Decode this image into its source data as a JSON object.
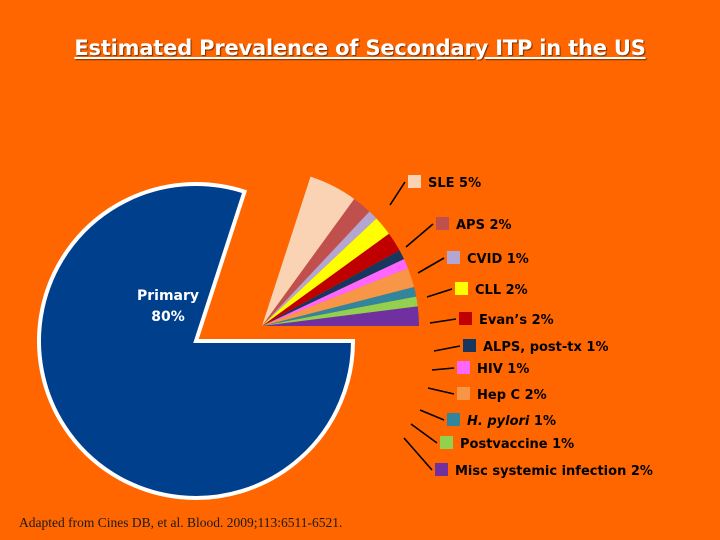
{
  "title": "Estimated Prevalence of Secondary ITP in the US",
  "citation": "Adapted from Cines DB, et al. Blood. 2009;113:6511-6521.",
  "chart_data": {
    "type": "pie",
    "title": "Estimated Prevalence of Secondary ITP in the US",
    "slices": [
      {
        "label": "Primary",
        "value": 80,
        "value_text": "80%",
        "color": "#003F8C"
      },
      {
        "label": "SLE 5%",
        "value": 5,
        "color": "#FAD2B4"
      },
      {
        "label": "APS 2%",
        "value": 2,
        "color": "#C0504D"
      },
      {
        "label": "CVID 1%",
        "value": 1,
        "color": "#B3A6D3"
      },
      {
        "label": "CLL 2%",
        "value": 2,
        "color": "#FFFF00"
      },
      {
        "label": "Evan’s 2%",
        "value": 2,
        "color": "#C00000"
      },
      {
        "label": "ALPS, post-tx 1%",
        "value": 1,
        "color": "#17375E"
      },
      {
        "label": "HIV 1%",
        "value": 1,
        "color": "#FF66FF"
      },
      {
        "label": "Hep C 2%",
        "value": 2,
        "color": "#F79646"
      },
      {
        "label_italic": "H. pylori",
        "label_rest": " 1%",
        "label": "H. pylori 1%",
        "value": 1,
        "color": "#31859C"
      },
      {
        "label": "Postvaccine 1%",
        "value": 1,
        "color": "#92D050"
      },
      {
        "label": "Misc systemic infection 2%",
        "value": 2,
        "color": "#7030A0"
      }
    ]
  }
}
